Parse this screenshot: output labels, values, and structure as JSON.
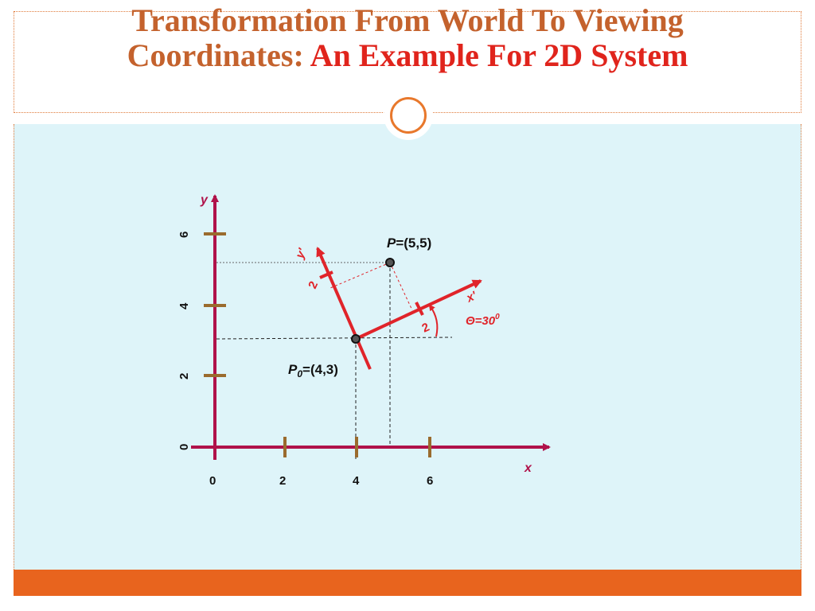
{
  "slide": {
    "title_line1": "Transformation From World To Viewing",
    "title_line2a": "Coordinates: ",
    "title_line2b": "An Example For 2D System"
  },
  "colors": {
    "title": "#c4622d",
    "title_accent": "#e0241c",
    "panel_bg": "#def4f9",
    "bottom_bar": "#e8641e",
    "world_axes": "#b0124a",
    "viewing_axes": "#e0242a",
    "tick_marks": "#9a6b2e"
  },
  "diagram": {
    "x_axis_label": "x",
    "y_axis_label": "y",
    "x_tick_labels": [
      "0",
      "2",
      "4",
      "6"
    ],
    "y_tick_labels": [
      "0",
      "2",
      "4",
      "6"
    ],
    "p_label_italic": "P",
    "p_label_value": "=(5,5)",
    "p0_label_italic": "P",
    "p0_subscript": "0",
    "p0_label_value": "=(4,3)",
    "xprime_label": "x'",
    "yprime_label": "y'",
    "xprime_tick_label": "2",
    "yprime_tick_label": "2",
    "theta_label": "Θ=30",
    "theta_superscript": "0"
  }
}
